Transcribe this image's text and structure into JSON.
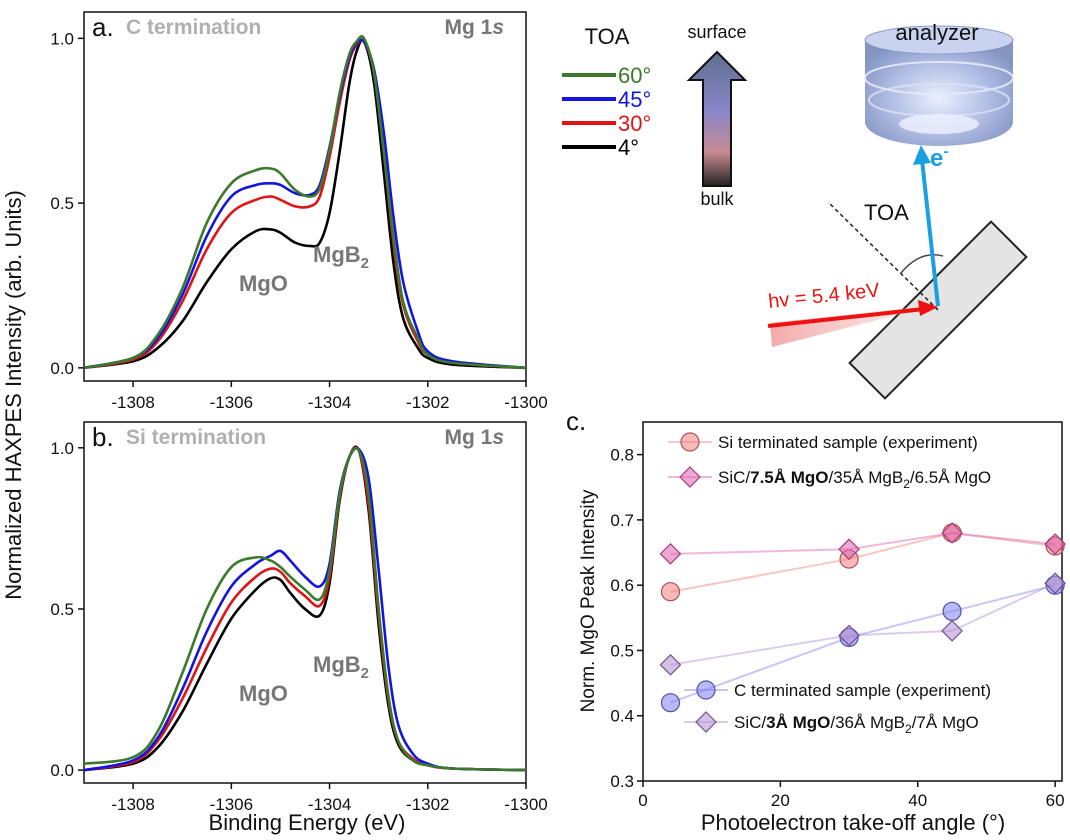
{
  "figure": {
    "ylabel": "Normalized HAXPES Intensity (arb. Units)",
    "xlabel": "Binding Energy (eV)"
  },
  "legend": {
    "title": "TOA",
    "entries": [
      {
        "label": "60°",
        "color": "#3a7a2a"
      },
      {
        "label": "45°",
        "color": "#1414e0"
      },
      {
        "label": "30°",
        "color": "#e01414"
      },
      {
        "label": "4°",
        "color": "#000000"
      }
    ],
    "arrow_top": "surface",
    "arrow_bottom": "bulk"
  },
  "schematic": {
    "analyzer_label": "analyzer",
    "electron_label": "e",
    "electron_sup": "-",
    "toa_label": "TOA",
    "photon_label": "hv = 5.4 keV"
  },
  "chart_data": [
    {
      "id": "a",
      "type": "line",
      "panel_letter": "a.",
      "panel_title": "C termination",
      "corner_label": "Mg 1",
      "corner_label_italic": "s",
      "peak_labels": {
        "mgo": "MgO",
        "mgb2_main": "MgB",
        "mgb2_sub": "2"
      },
      "xlim": [
        -1309,
        -1300
      ],
      "ylim": [
        -0.04,
        1.08
      ],
      "xticks": [
        -1308,
        -1306,
        -1304,
        -1302,
        -1300
      ],
      "yticks": [
        0.0,
        0.5,
        1.0
      ],
      "ytick_labels": [
        "0.0",
        "0.5",
        "1.0"
      ],
      "series": [
        {
          "name": "4°",
          "color": "#000000",
          "x": [
            -1309,
            -1308,
            -1307.5,
            -1307,
            -1306.5,
            -1306,
            -1305.5,
            -1305.2,
            -1305,
            -1304.7,
            -1304.4,
            -1304.2,
            -1304,
            -1303.8,
            -1303.6,
            -1303.45,
            -1303.3,
            -1303.1,
            -1302.9,
            -1302.7,
            -1302.5,
            -1302.2,
            -1302,
            -1301.5,
            -1300
          ],
          "y": [
            0.0,
            0.02,
            0.06,
            0.14,
            0.26,
            0.36,
            0.415,
            0.42,
            0.41,
            0.38,
            0.37,
            0.38,
            0.47,
            0.65,
            0.86,
            0.96,
            0.99,
            0.87,
            0.6,
            0.32,
            0.15,
            0.06,
            0.03,
            0.01,
            0.0
          ]
        },
        {
          "name": "30°",
          "color": "#e01414",
          "x": [
            -1309,
            -1308,
            -1307.5,
            -1307,
            -1306.5,
            -1306,
            -1305.5,
            -1305.2,
            -1305,
            -1304.7,
            -1304.4,
            -1304.2,
            -1304,
            -1303.8,
            -1303.6,
            -1303.45,
            -1303.3,
            -1303.1,
            -1302.9,
            -1302.7,
            -1302.5,
            -1302.2,
            -1302,
            -1301.5,
            -1300
          ],
          "y": [
            0.0,
            0.025,
            0.08,
            0.2,
            0.36,
            0.47,
            0.51,
            0.52,
            0.51,
            0.49,
            0.49,
            0.52,
            0.64,
            0.8,
            0.93,
            0.98,
            0.99,
            0.9,
            0.66,
            0.38,
            0.19,
            0.08,
            0.04,
            0.015,
            0.0
          ]
        },
        {
          "name": "45°",
          "color": "#1414e0",
          "x": [
            -1309,
            -1308,
            -1307.5,
            -1307,
            -1306.5,
            -1306,
            -1305.5,
            -1305.2,
            -1305,
            -1304.7,
            -1304.4,
            -1304.2,
            -1304,
            -1303.8,
            -1303.6,
            -1303.45,
            -1303.3,
            -1303.1,
            -1302.9,
            -1302.7,
            -1302.5,
            -1302.2,
            -1302,
            -1301.5,
            -1300
          ],
          "y": [
            0.0,
            0.03,
            0.09,
            0.22,
            0.4,
            0.52,
            0.555,
            0.56,
            0.555,
            0.53,
            0.525,
            0.555,
            0.67,
            0.82,
            0.94,
            0.985,
            0.99,
            0.91,
            0.72,
            0.46,
            0.26,
            0.11,
            0.05,
            0.02,
            0.0
          ]
        },
        {
          "name": "60°",
          "color": "#3a7a2a",
          "x": [
            -1309,
            -1308,
            -1307.5,
            -1307,
            -1306.5,
            -1306,
            -1305.5,
            -1305.2,
            -1305,
            -1304.7,
            -1304.4,
            -1304.2,
            -1304,
            -1303.8,
            -1303.6,
            -1303.45,
            -1303.3,
            -1303.1,
            -1302.9,
            -1302.7,
            -1302.5,
            -1302.2,
            -1302,
            -1301.5,
            -1300
          ],
          "y": [
            0.0,
            0.03,
            0.1,
            0.24,
            0.44,
            0.56,
            0.6,
            0.605,
            0.59,
            0.54,
            0.52,
            0.545,
            0.66,
            0.83,
            0.95,
            0.99,
            1.0,
            0.9,
            0.66,
            0.4,
            0.2,
            0.09,
            0.04,
            0.015,
            0.0
          ]
        }
      ]
    },
    {
      "id": "b",
      "type": "line",
      "panel_letter": "b.",
      "panel_title": "Si termination",
      "corner_label": "Mg 1",
      "corner_label_italic": "s",
      "peak_labels": {
        "mgo": "MgO",
        "mgb2_main": "MgB",
        "mgb2_sub": "2"
      },
      "xlim": [
        -1309,
        -1300
      ],
      "ylim": [
        -0.04,
        1.08
      ],
      "xticks": [
        -1308,
        -1306,
        -1304,
        -1302,
        -1300
      ],
      "yticks": [
        0.0,
        0.5,
        1.0
      ],
      "ytick_labels": [
        "0.0",
        "0.5",
        "1.0"
      ],
      "series": [
        {
          "name": "4°",
          "color": "#000000",
          "x": [
            -1309,
            -1308,
            -1307.5,
            -1307,
            -1306.5,
            -1306,
            -1305.5,
            -1305.2,
            -1305,
            -1304.8,
            -1304.5,
            -1304.2,
            -1304,
            -1303.8,
            -1303.6,
            -1303.4,
            -1303.2,
            -1303,
            -1302.8,
            -1302.6,
            -1302.3,
            -1302,
            -1301.5,
            -1300
          ],
          "y": [
            0.0,
            0.02,
            0.07,
            0.18,
            0.33,
            0.47,
            0.56,
            0.595,
            0.59,
            0.55,
            0.5,
            0.48,
            0.58,
            0.83,
            0.97,
            0.99,
            0.8,
            0.45,
            0.2,
            0.08,
            0.03,
            0.015,
            0.005,
            0.0
          ]
        },
        {
          "name": "30°",
          "color": "#e01414",
          "x": [
            -1309,
            -1308,
            -1307.5,
            -1307,
            -1306.5,
            -1306,
            -1305.5,
            -1305.2,
            -1305,
            -1304.8,
            -1304.5,
            -1304.2,
            -1304,
            -1303.8,
            -1303.6,
            -1303.4,
            -1303.2,
            -1303,
            -1302.8,
            -1302.6,
            -1302.3,
            -1302,
            -1301.5,
            -1300
          ],
          "y": [
            0.0,
            0.025,
            0.09,
            0.22,
            0.38,
            0.52,
            0.6,
            0.625,
            0.615,
            0.58,
            0.54,
            0.51,
            0.6,
            0.84,
            0.97,
            0.99,
            0.82,
            0.48,
            0.22,
            0.09,
            0.035,
            0.015,
            0.005,
            0.0
          ]
        },
        {
          "name": "45°",
          "color": "#1414e0",
          "x": [
            -1309,
            -1308,
            -1307.5,
            -1307,
            -1306.5,
            -1306,
            -1305.5,
            -1305.2,
            -1305,
            -1304.8,
            -1304.5,
            -1304.2,
            -1304,
            -1303.8,
            -1303.6,
            -1303.4,
            -1303.2,
            -1303,
            -1302.8,
            -1302.6,
            -1302.3,
            -1302,
            -1301.5,
            -1300
          ],
          "y": [
            0.0,
            0.03,
            0.1,
            0.25,
            0.43,
            0.57,
            0.64,
            0.665,
            0.68,
            0.65,
            0.6,
            0.57,
            0.64,
            0.86,
            0.97,
            0.995,
            0.9,
            0.62,
            0.32,
            0.14,
            0.05,
            0.02,
            0.005,
            0.0
          ]
        },
        {
          "name": "60°",
          "color": "#3a7a2a",
          "x": [
            -1309,
            -1308,
            -1307.5,
            -1307,
            -1306.5,
            -1306,
            -1305.5,
            -1305.2,
            -1305,
            -1304.8,
            -1304.5,
            -1304.2,
            -1304,
            -1303.8,
            -1303.6,
            -1303.4,
            -1303.2,
            -1303,
            -1302.8,
            -1302.6,
            -1302.3,
            -1302,
            -1301.5,
            -1300
          ],
          "y": [
            0.02,
            0.04,
            0.12,
            0.3,
            0.5,
            0.63,
            0.66,
            0.65,
            0.63,
            0.6,
            0.56,
            0.53,
            0.62,
            0.85,
            0.97,
            0.99,
            0.85,
            0.5,
            0.23,
            0.09,
            0.03,
            0.015,
            0.005,
            0.0
          ]
        }
      ]
    },
    {
      "id": "c",
      "type": "scatter",
      "panel_letter": "c.",
      "xlabel": "Photoelectron take-off angle (°)",
      "ylabel": "Norm. MgO Peak Intensity",
      "xlim": [
        0,
        61
      ],
      "ylim": [
        0.3,
        0.85
      ],
      "xticks": [
        0,
        20,
        40,
        60
      ],
      "yticks": [
        0.3,
        0.4,
        0.5,
        0.6,
        0.7,
        0.8
      ],
      "ytick_labels": [
        "0.3",
        "0.4",
        "0.5",
        "0.6",
        "0.7",
        "0.8"
      ],
      "series": [
        {
          "key": "si_exp",
          "marker": "circle",
          "color": "#f08080",
          "stroke": "#b05050",
          "x": [
            4,
            30,
            45,
            60
          ],
          "y": [
            0.59,
            0.64,
            0.68,
            0.66
          ],
          "legend_parts": [
            {
              "text": "Si terminated sample (experiment)"
            }
          ]
        },
        {
          "key": "si_sim",
          "marker": "diamond",
          "color": "#e060b0",
          "stroke": "#a0407a",
          "x": [
            4,
            30,
            45,
            60
          ],
          "y": [
            0.648,
            0.655,
            0.68,
            0.663
          ],
          "legend_parts": [
            {
              "text": "SiC/"
            },
            {
              "text": "7.5Å MgO",
              "bold": true
            },
            {
              "text": "/35Å MgB"
            },
            {
              "text": "2",
              "sub": true
            },
            {
              "text": "/6.5Å MgO"
            }
          ]
        },
        {
          "key": "c_exp",
          "marker": "circle",
          "color": "#8080f0",
          "stroke": "#5050b0",
          "x": [
            4,
            30,
            45,
            60
          ],
          "y": [
            0.42,
            0.52,
            0.56,
            0.6
          ],
          "legend_parts": [
            {
              "text": "C terminated sample (experiment)"
            }
          ]
        },
        {
          "key": "c_sim",
          "marker": "diamond",
          "color": "#b090d0",
          "stroke": "#705090",
          "x": [
            4,
            30,
            45,
            60
          ],
          "y": [
            0.478,
            0.523,
            0.53,
            0.603
          ],
          "legend_parts": [
            {
              "text": "SiC/"
            },
            {
              "text": "3Å MgO",
              "bold": true
            },
            {
              "text": "/36Å MgB"
            },
            {
              "text": "2",
              "sub": true
            },
            {
              "text": "/7Å MgO"
            }
          ]
        }
      ]
    }
  ]
}
